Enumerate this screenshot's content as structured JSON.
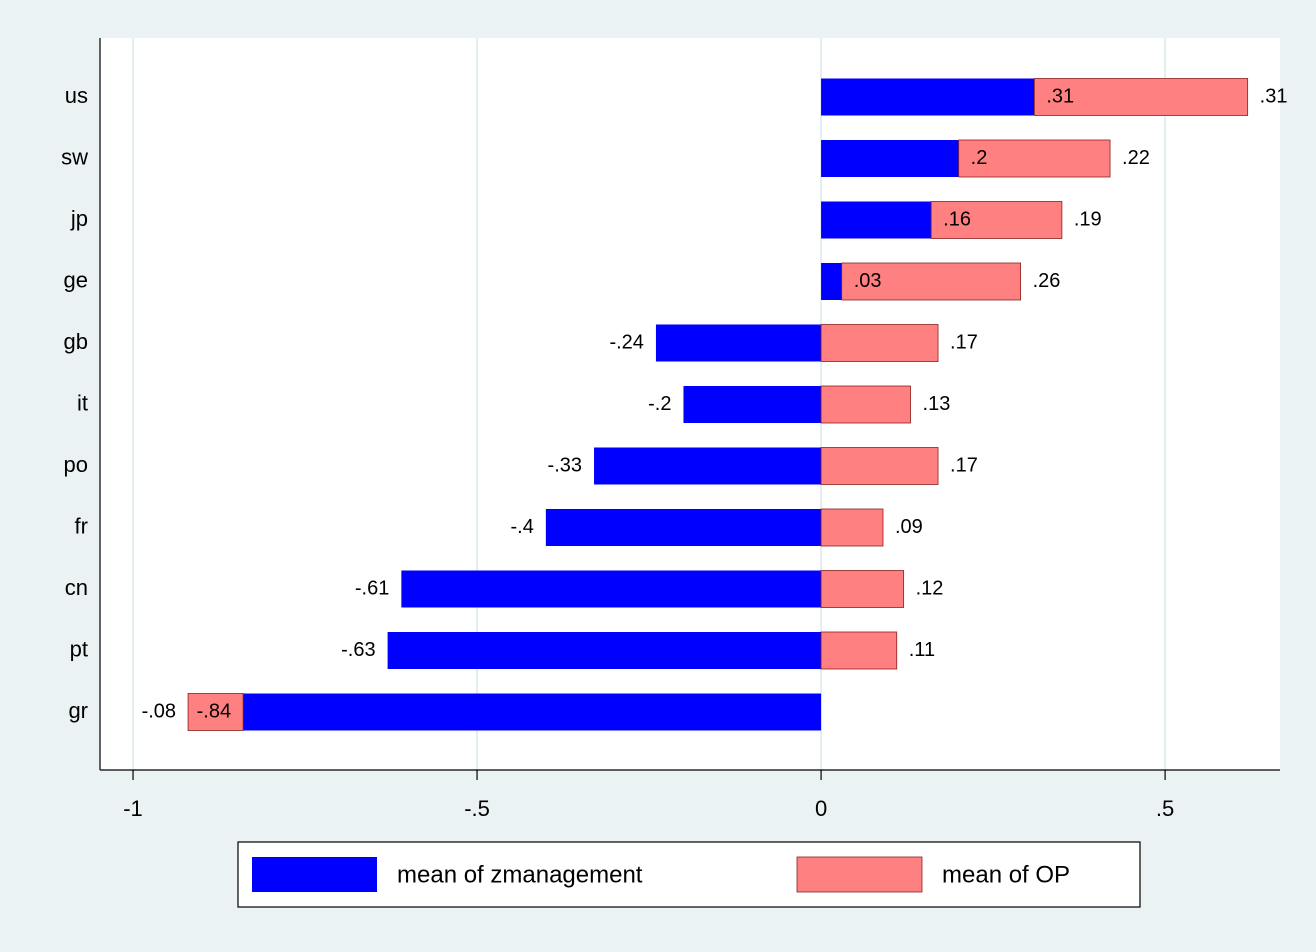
{
  "chart_data": {
    "type": "bar",
    "orientation": "horizontal",
    "stacked": true,
    "categories": [
      "us",
      "sw",
      "jp",
      "ge",
      "gb",
      "it",
      "po",
      "fr",
      "cn",
      "pt",
      "gr"
    ],
    "series": [
      {
        "name": "mean of zmanagement",
        "color": "#0000ff",
        "values": [
          0.31,
          0.2,
          0.16,
          0.03,
          -0.24,
          -0.2,
          -0.33,
          -0.4,
          -0.61,
          -0.63,
          -0.84
        ],
        "value_labels": [
          ".31",
          ".2",
          ".16",
          ".03",
          "-.24",
          "-.2",
          "-.33",
          "-.4",
          "-.61",
          "-.63",
          "-.84"
        ]
      },
      {
        "name": "mean of OP",
        "color": "#ff8080",
        "values": [
          0.31,
          0.22,
          0.19,
          0.26,
          0.17,
          0.13,
          0.17,
          0.09,
          0.12,
          0.11,
          -0.08
        ],
        "value_labels": [
          ".31",
          ".22",
          ".19",
          ".26",
          ".17",
          ".13",
          ".17",
          ".09",
          ".12",
          ".11",
          "-.08"
        ]
      }
    ],
    "xlim": [
      -1.048,
      0.667
    ],
    "xticks": [
      -1,
      {
        "value": -0.5,
        "label": "-.5"
      },
      0,
      {
        "value": 0.5,
        "label": ".5"
      }
    ],
    "grid": true,
    "legend": "bottom"
  }
}
